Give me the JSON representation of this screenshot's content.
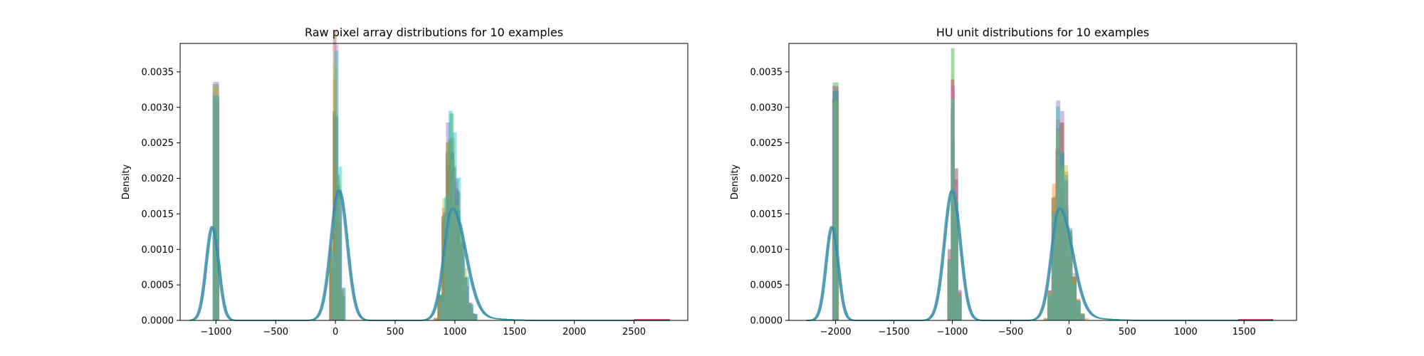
{
  "chart_data": [
    {
      "type": "histogram",
      "title": "Raw pixel array distributions for 10 examples",
      "xlabel": "",
      "ylabel": "Density",
      "xlim": [
        -1300,
        2950
      ],
      "ylim": [
        0,
        0.0039
      ],
      "xticks": [
        -1000,
        -500,
        0,
        500,
        1000,
        1500,
        2000,
        2500
      ],
      "yticks": [
        0.0,
        0.0005,
        0.001,
        0.0015,
        0.002,
        0.0025,
        0.003,
        0.0035
      ],
      "xtick_labels": [
        "−1000",
        "−500",
        "0",
        "500",
        "1000",
        "1500",
        "2000",
        "2500"
      ],
      "ytick_labels": [
        "0.0000",
        "0.0005",
        "0.0010",
        "0.0015",
        "0.0020",
        "0.0025",
        "0.0030",
        "0.0035"
      ],
      "series_count": 10,
      "bin_width": 50,
      "histogram_peaks": [
        {
          "x": -1000,
          "density": 0.0033
        },
        {
          "x": 0,
          "density": 0.0038
        },
        {
          "x": 950,
          "density": 0.00295
        }
      ],
      "kde_peaks": [
        {
          "x": -1030,
          "density": 0.00132
        },
        {
          "x": 30,
          "density": 0.00183
        },
        {
          "x": 980,
          "density": 0.00158
        }
      ],
      "kde_range": [
        -1220,
        2800
      ],
      "tail_end": 2800
    },
    {
      "type": "histogram",
      "title": "HU unit distributions for 10 examples",
      "xlabel": "",
      "ylabel": "Density",
      "xlim": [
        -2400,
        1950
      ],
      "ylim": [
        0,
        0.0039
      ],
      "xticks": [
        -2000,
        -1500,
        -1000,
        -500,
        0,
        500,
        1000,
        1500
      ],
      "yticks": [
        0.0,
        0.0005,
        0.001,
        0.0015,
        0.002,
        0.0025,
        0.003,
        0.0035
      ],
      "xtick_labels": [
        "−2000",
        "−1500",
        "−1000",
        "−500",
        "0",
        "500",
        "1000",
        "1500"
      ],
      "ytick_labels": [
        "0.0000",
        "0.0005",
        "0.0010",
        "0.0015",
        "0.0020",
        "0.0025",
        "0.0030",
        "0.0035"
      ],
      "series_count": 10,
      "bin_width": 50,
      "histogram_peaks": [
        {
          "x": -2000,
          "density": 0.0033
        },
        {
          "x": -1000,
          "density": 0.0038
        },
        {
          "x": -100,
          "density": 0.00295
        }
      ],
      "kde_peaks": [
        {
          "x": -2030,
          "density": 0.00132
        },
        {
          "x": -1000,
          "density": 0.00183
        },
        {
          "x": -80,
          "density": 0.00158
        }
      ],
      "kde_range": [
        -2250,
        1750
      ],
      "tail_end": 1750
    }
  ],
  "colors": [
    "#1f77b4",
    "#ff7f0e",
    "#2ca02c",
    "#d62728",
    "#9467bd",
    "#8c564b",
    "#e377c2",
    "#7f7f7f",
    "#bcbd22",
    "#17becf"
  ],
  "kde_color": "#2ca6a0"
}
